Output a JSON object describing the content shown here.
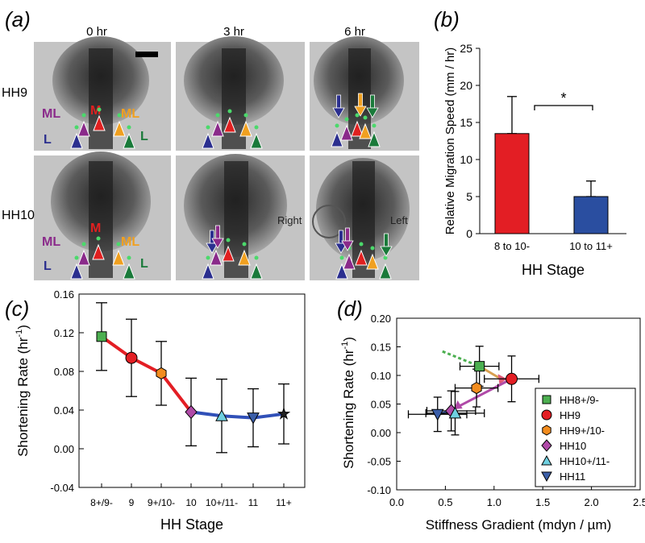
{
  "panel_a": {
    "label": "(a)",
    "time_labels": [
      "0 hr",
      "3 hr",
      "6 hr"
    ],
    "row_labels": [
      "HH9",
      "HH10"
    ],
    "cell_labels": {
      "M": "M",
      "ML_left": "ML",
      "ML_right": "ML",
      "L_left": "L",
      "L_right": "L"
    },
    "side_labels": {
      "right": "Right",
      "left": "Left"
    },
    "colors": {
      "lateral_left": "#2b2f8f",
      "medial_lateral_left": "#8a2a8a",
      "medial": "#e02020",
      "medial_lateral_right": "#f0a020",
      "lateral_right": "#1a7a3a"
    }
  },
  "chart_data": [
    {
      "panel": "(b)",
      "type": "bar",
      "categories": [
        "8 to 10-",
        "10 to 11+"
      ],
      "values": [
        13.5,
        5.0
      ],
      "errors": [
        5.0,
        2.1
      ],
      "colors": [
        "#e31e24",
        "#2a4ea0"
      ],
      "xlabel": "HH Stage",
      "ylabel": "Relative Migration Speed (mm / hr)",
      "ylim": [
        0,
        25
      ],
      "yticks": [
        "0",
        "5",
        "10",
        "15",
        "20",
        "25"
      ],
      "annotation": "*"
    },
    {
      "panel": "(c)",
      "type": "line",
      "categories": [
        "8+/9-",
        "9",
        "9+/10-",
        "10",
        "10+/11-",
        "11",
        "11+"
      ],
      "values": [
        0.116,
        0.094,
        0.078,
        0.038,
        0.034,
        0.032,
        0.036
      ],
      "errors": [
        0.035,
        0.04,
        0.033,
        0.035,
        0.038,
        0.03,
        0.031
      ],
      "xlabel": "HH Stage",
      "ylabel": "Shortening Rate (hr",
      "ylabel_sup": "-1",
      "ylabel_end": ")",
      "ylim": [
        -0.04,
        0.16
      ],
      "yticks": [
        "-0.04",
        "0.00",
        "0.04",
        "0.08",
        "0.12",
        "0.16"
      ],
      "segment_colors": [
        "#e31e24",
        "#3050b8"
      ],
      "marker_colors": [
        "#4caf50",
        "#e31e24",
        "#f28c1e",
        "#b04aa8",
        "#6fd0e0",
        "#3b5ea8",
        "#222222"
      ],
      "markers": [
        "square",
        "circle",
        "hexagon",
        "diamond",
        "triangle-up",
        "triangle-down",
        "star"
      ]
    },
    {
      "panel": "(d)",
      "type": "scatter",
      "series": [
        {
          "name": "HH8+/9-",
          "x": 0.85,
          "y": 0.116,
          "xerr": 0.2,
          "yerr": 0.035,
          "color": "#4caf50",
          "marker": "square"
        },
        {
          "name": "HH9",
          "x": 1.18,
          "y": 0.094,
          "xerr": 0.28,
          "yerr": 0.04,
          "color": "#e31e24",
          "marker": "circle"
        },
        {
          "name": "HH9+/10-",
          "x": 0.82,
          "y": 0.078,
          "xerr": 0.22,
          "yerr": 0.033,
          "color": "#f28c1e",
          "marker": "hexagon"
        },
        {
          "name": "HH10",
          "x": 0.56,
          "y": 0.038,
          "xerr": 0.25,
          "yerr": 0.035,
          "color": "#b04aa8",
          "marker": "diamond"
        },
        {
          "name": "HH10+/11-",
          "x": 0.6,
          "y": 0.034,
          "xerr": 0.3,
          "yerr": 0.038,
          "color": "#6fd0e0",
          "marker": "triangle-up"
        },
        {
          "name": "HH11",
          "x": 0.42,
          "y": 0.032,
          "xerr": 0.3,
          "yerr": 0.03,
          "color": "#3b5ea8",
          "marker": "triangle-down"
        }
      ],
      "xlabel": "Stiffness Gradient (mdyn / µm)",
      "ylabel": "Shortening Rate (hr",
      "ylabel_sup": "-1",
      "ylabel_end": ")",
      "xlim": [
        0.0,
        2.5
      ],
      "ylim": [
        -0.1,
        0.2
      ],
      "xticks": [
        "0.0",
        "0.5",
        "1.0",
        "1.5",
        "2.0",
        "2.5"
      ],
      "yticks": [
        "-0.10",
        "-0.05",
        "0.00",
        "0.05",
        "0.10",
        "0.15",
        "0.20"
      ],
      "legend_placement": "bottom-right"
    }
  ]
}
